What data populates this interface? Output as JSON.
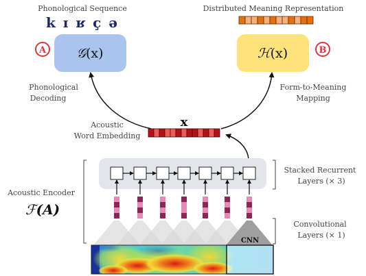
{
  "top": {
    "phon_seq_title": "Phonological Sequence",
    "phon_symbols": "k ɪ ʁ ç ə",
    "meaning_title": "Distributed Meaning Representation"
  },
  "decoders": {
    "g": {
      "badge": "A",
      "func": "𝒢",
      "arg": "(x)"
    },
    "h": {
      "badge": "B",
      "func": "ℋ",
      "arg": "(x)"
    }
  },
  "labels": {
    "phon_decoding_1": "Phonological",
    "phon_decoding_2": "Decoding",
    "form_meaning_1": "Form-to-Meaning",
    "form_meaning_2": "Mapping",
    "awe_1": "Acoustic",
    "awe_2": "Word Embedding",
    "x_label": "x",
    "encoder_1": "Acoustic Encoder",
    "encoder_func": "ℱ",
    "encoder_arg": "(A)",
    "rnn_1": "Stacked Recurrent",
    "rnn_2": "Layers (× 3)",
    "conv_1": "Convolutional",
    "conv_2": "Layers (× 1)",
    "cnn": "CNN"
  },
  "colors": {
    "g_box": "#a9c4ee",
    "h_box": "#fde37a",
    "badge": "#d9363e",
    "embed_dark": "#b3121b",
    "embed_light": "#ee5b5b",
    "meaning_dark": "#e4700e",
    "meaning_light": "#f7b07a",
    "feature_pink": "#e58ab5",
    "feature_dark": "#8e2453",
    "rnn_bg": "#e3e5ea",
    "phon_text": "#1b2a6b"
  }
}
